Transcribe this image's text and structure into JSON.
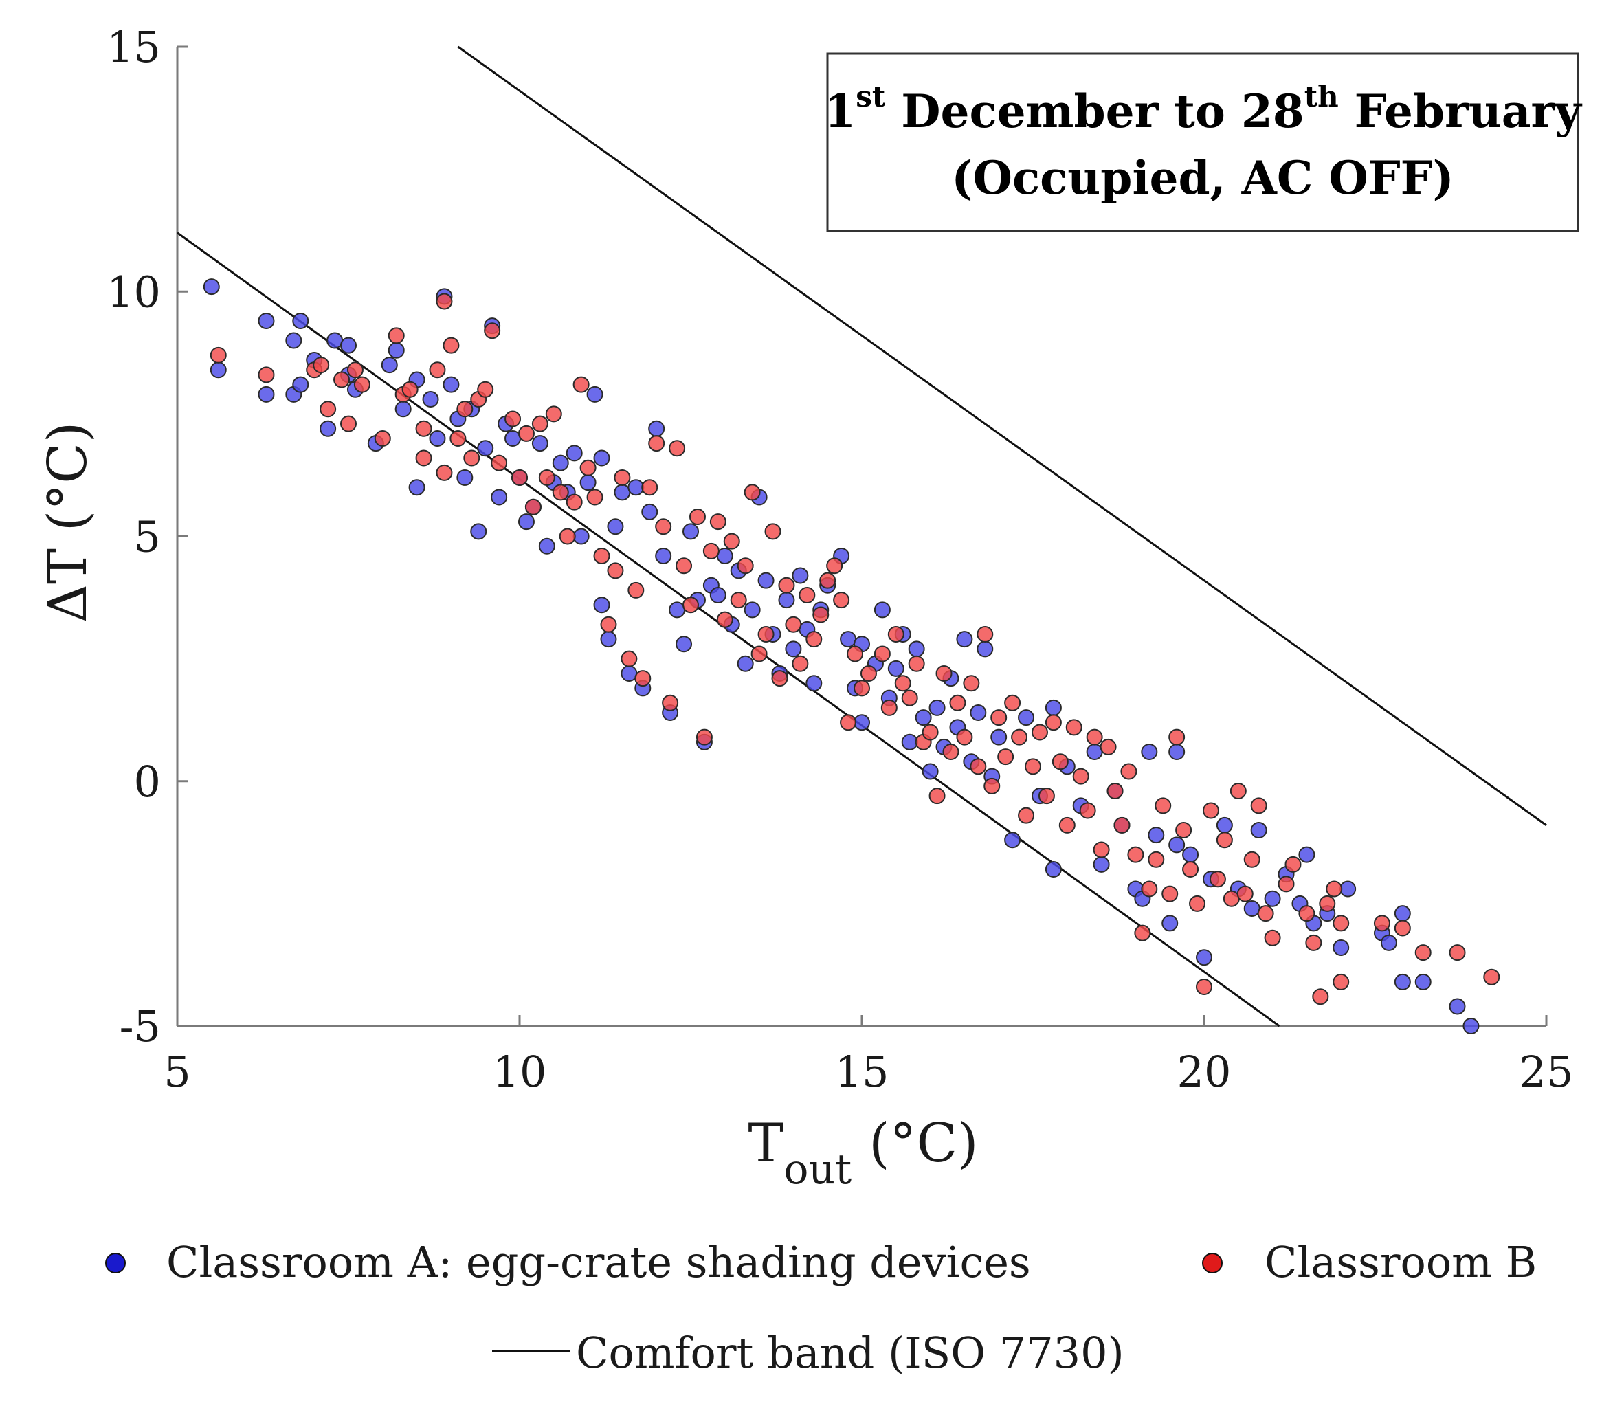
{
  "chart_data": {
    "type": "scatter",
    "title": {
      "start_num": "1",
      "start_sup": "st",
      "mid": " December to 28",
      "end_sup": "th",
      "end": " February",
      "line2": "(Occupied, AC OFF)"
    },
    "xlabel": {
      "main": "T",
      "sub": "out",
      "unit": " (°C)"
    },
    "ylabel": "ΔT (°C)",
    "xlim": [
      5,
      25
    ],
    "ylim": [
      -5,
      15
    ],
    "xticks": [
      5,
      10,
      15,
      20,
      25
    ],
    "yticks": [
      -5,
      0,
      5,
      10,
      15
    ],
    "xtick_labels": [
      "5",
      "10",
      "15",
      "20",
      "25"
    ],
    "ytick_labels": [
      "-5",
      "0",
      "5",
      "10",
      "15"
    ],
    "grid": false,
    "legend": {
      "placement": "bottom",
      "items": [
        "Classroom A: egg-crate shading devices",
        "Classroom B",
        "Comfort band (ISO 7730)"
      ]
    },
    "comfort_band": [
      {
        "name": "Comfort band upper",
        "points": [
          [
            9.1,
            15
          ],
          [
            25,
            -0.9
          ]
        ]
      },
      {
        "name": "Comfort band lower",
        "points": [
          [
            5,
            11.2
          ],
          [
            21.1,
            -5
          ]
        ]
      }
    ],
    "series": [
      {
        "name": "Classroom A: egg-crate shading devices",
        "color": "#4a4ae6",
        "points": [
          [
            5.5,
            10.1
          ],
          [
            5.6,
            8.4
          ],
          [
            6.3,
            9.4
          ],
          [
            6.3,
            7.9
          ],
          [
            6.7,
            9.0
          ],
          [
            6.8,
            9.4
          ],
          [
            6.7,
            7.9
          ],
          [
            6.8,
            8.1
          ],
          [
            7.0,
            8.6
          ],
          [
            7.2,
            7.2
          ],
          [
            7.3,
            9.0
          ],
          [
            7.5,
            8.9
          ],
          [
            7.5,
            8.3
          ],
          [
            7.6,
            8.0
          ],
          [
            7.9,
            6.9
          ],
          [
            8.1,
            8.5
          ],
          [
            8.2,
            8.8
          ],
          [
            8.3,
            7.6
          ],
          [
            8.5,
            8.2
          ],
          [
            8.5,
            6.0
          ],
          [
            8.7,
            7.8
          ],
          [
            8.8,
            7.0
          ],
          [
            8.9,
            9.9
          ],
          [
            9.0,
            8.1
          ],
          [
            9.1,
            7.4
          ],
          [
            9.2,
            6.2
          ],
          [
            9.3,
            7.6
          ],
          [
            9.4,
            5.1
          ],
          [
            9.5,
            6.8
          ],
          [
            9.6,
            9.3
          ],
          [
            9.7,
            5.8
          ],
          [
            9.8,
            7.3
          ],
          [
            9.9,
            7.0
          ],
          [
            10.0,
            6.2
          ],
          [
            10.1,
            5.3
          ],
          [
            10.2,
            5.6
          ],
          [
            10.3,
            6.9
          ],
          [
            10.4,
            4.8
          ],
          [
            10.5,
            6.1
          ],
          [
            10.6,
            6.5
          ],
          [
            10.7,
            5.9
          ],
          [
            10.8,
            6.7
          ],
          [
            10.9,
            5.0
          ],
          [
            11.0,
            6.1
          ],
          [
            11.1,
            7.9
          ],
          [
            11.2,
            6.6
          ],
          [
            11.2,
            3.6
          ],
          [
            11.3,
            2.9
          ],
          [
            11.4,
            5.2
          ],
          [
            11.5,
            5.9
          ],
          [
            11.6,
            2.2
          ],
          [
            11.7,
            6.0
          ],
          [
            11.8,
            1.9
          ],
          [
            11.9,
            5.5
          ],
          [
            12.0,
            7.2
          ],
          [
            12.1,
            4.6
          ],
          [
            12.2,
            1.4
          ],
          [
            12.3,
            3.5
          ],
          [
            12.4,
            2.8
          ],
          [
            12.5,
            5.1
          ],
          [
            12.6,
            3.7
          ],
          [
            12.7,
            0.8
          ],
          [
            12.8,
            4.0
          ],
          [
            12.9,
            3.8
          ],
          [
            13.0,
            4.6
          ],
          [
            13.1,
            3.2
          ],
          [
            13.2,
            4.3
          ],
          [
            13.3,
            2.4
          ],
          [
            13.4,
            3.5
          ],
          [
            13.5,
            5.8
          ],
          [
            13.6,
            4.1
          ],
          [
            13.7,
            3.0
          ],
          [
            13.8,
            2.2
          ],
          [
            13.9,
            3.7
          ],
          [
            14.0,
            2.7
          ],
          [
            14.1,
            4.2
          ],
          [
            14.2,
            3.1
          ],
          [
            14.3,
            2.0
          ],
          [
            14.4,
            3.5
          ],
          [
            14.5,
            4.0
          ],
          [
            14.7,
            4.6
          ],
          [
            14.8,
            2.9
          ],
          [
            14.9,
            1.9
          ],
          [
            15.0,
            2.8
          ],
          [
            15.0,
            1.2
          ],
          [
            15.2,
            2.4
          ],
          [
            15.3,
            3.5
          ],
          [
            15.4,
            1.7
          ],
          [
            15.5,
            2.3
          ],
          [
            15.6,
            3.0
          ],
          [
            15.7,
            0.8
          ],
          [
            15.8,
            2.7
          ],
          [
            15.9,
            1.3
          ],
          [
            16.0,
            0.2
          ],
          [
            16.1,
            1.5
          ],
          [
            16.2,
            0.7
          ],
          [
            16.3,
            2.1
          ],
          [
            16.4,
            1.1
          ],
          [
            16.5,
            2.9
          ],
          [
            16.6,
            0.4
          ],
          [
            16.7,
            1.4
          ],
          [
            16.8,
            2.7
          ],
          [
            16.9,
            0.1
          ],
          [
            17.0,
            0.9
          ],
          [
            17.2,
            -1.2
          ],
          [
            17.4,
            1.3
          ],
          [
            17.6,
            -0.3
          ],
          [
            17.8,
            1.5
          ],
          [
            17.8,
            -1.8
          ],
          [
            18.0,
            0.3
          ],
          [
            18.2,
            -0.5
          ],
          [
            18.4,
            0.6
          ],
          [
            18.5,
            -1.7
          ],
          [
            18.7,
            -0.2
          ],
          [
            18.8,
            -0.9
          ],
          [
            19.0,
            -2.2
          ],
          [
            19.1,
            -2.4
          ],
          [
            19.2,
            0.6
          ],
          [
            19.3,
            -1.1
          ],
          [
            19.5,
            -2.9
          ],
          [
            19.6,
            -1.3
          ],
          [
            19.6,
            0.6
          ],
          [
            19.8,
            -1.5
          ],
          [
            20.0,
            -3.6
          ],
          [
            20.1,
            -2.0
          ],
          [
            20.3,
            -0.9
          ],
          [
            20.5,
            -2.2
          ],
          [
            20.7,
            -2.6
          ],
          [
            20.8,
            -1.0
          ],
          [
            21.0,
            -2.4
          ],
          [
            21.2,
            -1.9
          ],
          [
            21.4,
            -2.5
          ],
          [
            21.5,
            -1.5
          ],
          [
            21.6,
            -2.9
          ],
          [
            21.8,
            -2.7
          ],
          [
            22.0,
            -3.4
          ],
          [
            22.1,
            -2.2
          ],
          [
            22.6,
            -3.1
          ],
          [
            22.7,
            -3.3
          ],
          [
            22.9,
            -2.7
          ],
          [
            22.9,
            -4.1
          ],
          [
            23.2,
            -4.1
          ],
          [
            23.7,
            -4.6
          ],
          [
            23.9,
            -5.0
          ]
        ]
      },
      {
        "name": "Classroom B",
        "color": "#f24a4a",
        "points": [
          [
            5.6,
            8.7
          ],
          [
            6.3,
            8.3
          ],
          [
            7.0,
            8.4
          ],
          [
            7.1,
            8.5
          ],
          [
            7.2,
            7.6
          ],
          [
            7.4,
            8.2
          ],
          [
            7.5,
            7.3
          ],
          [
            7.6,
            8.4
          ],
          [
            7.7,
            8.1
          ],
          [
            8.0,
            7.0
          ],
          [
            8.2,
            9.1
          ],
          [
            8.3,
            7.9
          ],
          [
            8.4,
            8.0
          ],
          [
            8.6,
            7.2
          ],
          [
            8.6,
            6.6
          ],
          [
            8.8,
            8.4
          ],
          [
            8.9,
            9.8
          ],
          [
            8.9,
            6.3
          ],
          [
            9.0,
            8.9
          ],
          [
            9.1,
            7.0
          ],
          [
            9.2,
            7.6
          ],
          [
            9.3,
            6.6
          ],
          [
            9.4,
            7.8
          ],
          [
            9.5,
            8.0
          ],
          [
            9.6,
            9.2
          ],
          [
            9.7,
            6.5
          ],
          [
            9.9,
            7.4
          ],
          [
            10.0,
            6.2
          ],
          [
            10.1,
            7.1
          ],
          [
            10.2,
            5.6
          ],
          [
            10.3,
            7.3
          ],
          [
            10.4,
            6.2
          ],
          [
            10.5,
            7.5
          ],
          [
            10.6,
            5.9
          ],
          [
            10.7,
            5.0
          ],
          [
            10.8,
            5.7
          ],
          [
            10.9,
            8.1
          ],
          [
            11.0,
            6.4
          ],
          [
            11.1,
            5.8
          ],
          [
            11.2,
            4.6
          ],
          [
            11.3,
            3.2
          ],
          [
            11.4,
            4.3
          ],
          [
            11.5,
            6.2
          ],
          [
            11.6,
            2.5
          ],
          [
            11.7,
            3.9
          ],
          [
            11.8,
            2.1
          ],
          [
            11.9,
            6.0
          ],
          [
            12.0,
            6.9
          ],
          [
            12.1,
            5.2
          ],
          [
            12.2,
            1.6
          ],
          [
            12.3,
            6.8
          ],
          [
            12.4,
            4.4
          ],
          [
            12.5,
            3.6
          ],
          [
            12.6,
            5.4
          ],
          [
            12.7,
            0.9
          ],
          [
            12.8,
            4.7
          ],
          [
            12.9,
            5.3
          ],
          [
            13.0,
            3.3
          ],
          [
            13.1,
            4.9
          ],
          [
            13.2,
            3.7
          ],
          [
            13.3,
            4.4
          ],
          [
            13.4,
            5.9
          ],
          [
            13.5,
            2.6
          ],
          [
            13.6,
            3.0
          ],
          [
            13.7,
            5.1
          ],
          [
            13.8,
            2.1
          ],
          [
            13.9,
            4.0
          ],
          [
            14.0,
            3.2
          ],
          [
            14.1,
            2.4
          ],
          [
            14.2,
            3.8
          ],
          [
            14.3,
            2.9
          ],
          [
            14.4,
            3.4
          ],
          [
            14.5,
            4.1
          ],
          [
            14.6,
            4.4
          ],
          [
            14.7,
            3.7
          ],
          [
            14.8,
            1.2
          ],
          [
            14.9,
            2.6
          ],
          [
            15.0,
            1.9
          ],
          [
            15.1,
            2.2
          ],
          [
            15.3,
            2.6
          ],
          [
            15.4,
            1.5
          ],
          [
            15.5,
            3.0
          ],
          [
            15.6,
            2.0
          ],
          [
            15.7,
            1.7
          ],
          [
            15.8,
            2.4
          ],
          [
            15.9,
            0.8
          ],
          [
            16.0,
            1.0
          ],
          [
            16.1,
            -0.3
          ],
          [
            16.2,
            2.2
          ],
          [
            16.3,
            0.6
          ],
          [
            16.4,
            1.6
          ],
          [
            16.5,
            0.9
          ],
          [
            16.6,
            2.0
          ],
          [
            16.7,
            0.3
          ],
          [
            16.8,
            3.0
          ],
          [
            16.9,
            -0.1
          ],
          [
            17.0,
            1.3
          ],
          [
            17.1,
            0.5
          ],
          [
            17.2,
            1.6
          ],
          [
            17.3,
            0.9
          ],
          [
            17.4,
            -0.7
          ],
          [
            17.5,
            0.3
          ],
          [
            17.6,
            1.0
          ],
          [
            17.7,
            -0.3
          ],
          [
            17.8,
            1.2
          ],
          [
            17.9,
            0.4
          ],
          [
            18.0,
            -0.9
          ],
          [
            18.1,
            1.1
          ],
          [
            18.2,
            0.1
          ],
          [
            18.3,
            -0.6
          ],
          [
            18.4,
            0.9
          ],
          [
            18.5,
            -1.4
          ],
          [
            18.6,
            0.7
          ],
          [
            18.7,
            -0.2
          ],
          [
            18.8,
            -0.9
          ],
          [
            18.9,
            0.2
          ],
          [
            19.0,
            -1.5
          ],
          [
            19.1,
            -3.1
          ],
          [
            19.2,
            -2.2
          ],
          [
            19.3,
            -1.6
          ],
          [
            19.4,
            -0.5
          ],
          [
            19.5,
            -2.3
          ],
          [
            19.6,
            0.9
          ],
          [
            19.7,
            -1.0
          ],
          [
            19.8,
            -1.8
          ],
          [
            19.9,
            -2.5
          ],
          [
            20.0,
            -4.2
          ],
          [
            20.1,
            -0.6
          ],
          [
            20.2,
            -2.0
          ],
          [
            20.3,
            -1.2
          ],
          [
            20.4,
            -2.4
          ],
          [
            20.5,
            -0.2
          ],
          [
            20.6,
            -2.3
          ],
          [
            20.7,
            -1.6
          ],
          [
            20.8,
            -0.5
          ],
          [
            20.9,
            -2.7
          ],
          [
            21.0,
            -3.2
          ],
          [
            21.2,
            -2.1
          ],
          [
            21.3,
            -1.7
          ],
          [
            21.5,
            -2.7
          ],
          [
            21.6,
            -3.3
          ],
          [
            21.7,
            -4.4
          ],
          [
            21.8,
            -2.5
          ],
          [
            21.9,
            -2.2
          ],
          [
            22.0,
            -4.1
          ],
          [
            22.0,
            -2.9
          ],
          [
            22.6,
            -2.9
          ],
          [
            22.9,
            -3.0
          ],
          [
            23.2,
            -3.5
          ],
          [
            23.7,
            -3.5
          ],
          [
            24.2,
            -4.0
          ]
        ]
      }
    ]
  }
}
